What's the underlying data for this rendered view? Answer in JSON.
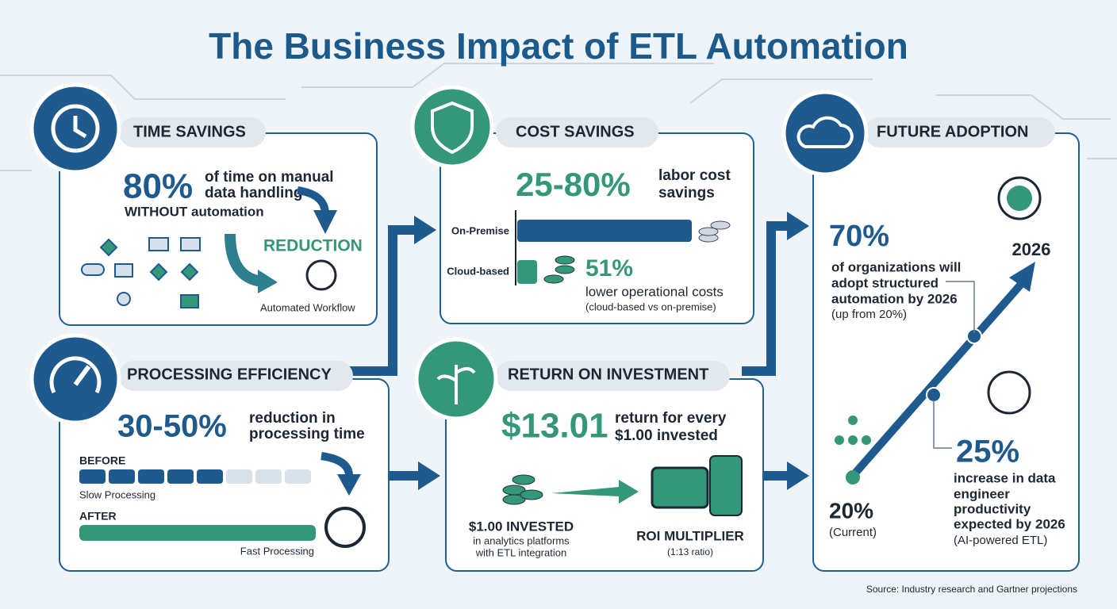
{
  "title": "The Business Impact of ETL Automation",
  "panels": {
    "time_savings": {
      "heading": "TIME SAVINGS",
      "stat": "80%",
      "stat_text": [
        "of time on manual",
        "data handling"
      ],
      "subtext": "WITHOUT automation",
      "label": "REDUCTION",
      "caption": "Automated Workflow"
    },
    "processing": {
      "heading": "PROCESSING EFFICIENCY",
      "stat": "30-50%",
      "stat_text": [
        "reduction in",
        "processing time"
      ],
      "before": "BEFORE",
      "before_caption": "Slow Processing",
      "after": "AFTER",
      "after_caption": "Fast Processing"
    },
    "cost": {
      "heading": "COST SAVINGS",
      "stat": "25-80%",
      "stat_text": [
        "labor cost",
        "savings"
      ],
      "bar_labels": [
        "On-Premise",
        "Cloud-based"
      ],
      "stat2": "51%",
      "stat2_text": "lower operational costs",
      "stat2_note": "(cloud-based vs on-premise)"
    },
    "roi": {
      "heading": "RETURN ON INVESTMENT",
      "stat": "$13.01",
      "stat_text": [
        "return for every",
        "$1.00 invested"
      ],
      "invested": "$1.00 INVESTED",
      "invested_text": [
        "in analytics platforms",
        "with ETL integration"
      ],
      "multiplier": "ROI MULTIPLIER",
      "ratio": "(1:13 ratio)"
    },
    "future": {
      "heading": "FUTURE ADOPTION",
      "year": "2026",
      "stat": "70%",
      "stat_text": [
        "of organizations will",
        "adopt structured",
        "automation by 2026"
      ],
      "stat_note": "(up from 20%)",
      "current": "20%",
      "current_label": "(Current)",
      "stat2": "25%",
      "stat2_text": [
        "increase in data",
        "engineer",
        "productivity",
        "expected by 2026"
      ],
      "stat2_note": "(AI-powered ETL)"
    }
  },
  "source": "Source: Industry research and Gartner projections"
}
